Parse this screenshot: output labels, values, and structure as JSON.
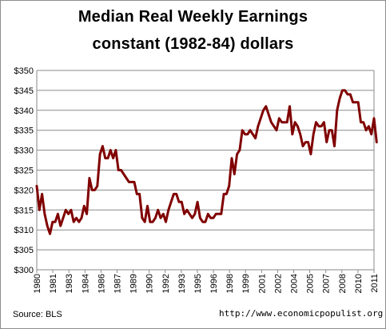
{
  "chart_data": {
    "type": "line",
    "title": "Median Real Weekly Earnings",
    "subtitle": "constant (1982-84) dollars",
    "xlabel": "",
    "ylabel": "",
    "ylim": [
      300,
      350
    ],
    "yticks": [
      300,
      305,
      310,
      315,
      320,
      325,
      330,
      335,
      340,
      345,
      350
    ],
    "ytick_labels": [
      "$300",
      "$305",
      "$310",
      "$315",
      "$320",
      "$325",
      "$330",
      "$335",
      "$340",
      "$345",
      "$350"
    ],
    "xtick_labels": [
      "1980",
      "1981",
      "1983",
      "1984",
      "1986",
      "1987",
      "1989",
      "1990",
      "1992",
      "1993",
      "1995",
      "1996",
      "1998",
      "1999",
      "2001",
      "2002",
      "2004",
      "2005",
      "2007",
      "2008",
      "2010",
      "2011"
    ],
    "xlim": [
      1980,
      2012
    ],
    "grid": true,
    "line_color": "#800000",
    "series": [
      {
        "points": [
          [
            1980.0,
            321
          ],
          [
            1980.25,
            315
          ],
          [
            1980.5,
            319
          ],
          [
            1980.75,
            314
          ],
          [
            1981.0,
            311
          ],
          [
            1981.25,
            309
          ],
          [
            1981.5,
            312
          ],
          [
            1981.75,
            312
          ],
          [
            1982.0,
            314
          ],
          [
            1982.25,
            311
          ],
          [
            1982.5,
            313
          ],
          [
            1982.75,
            315
          ],
          [
            1983.0,
            314
          ],
          [
            1983.25,
            315
          ],
          [
            1983.5,
            312
          ],
          [
            1983.75,
            313
          ],
          [
            1984.0,
            312
          ],
          [
            1984.25,
            313
          ],
          [
            1984.5,
            316
          ],
          [
            1984.75,
            314
          ],
          [
            1985.0,
            323
          ],
          [
            1985.25,
            320
          ],
          [
            1985.5,
            320
          ],
          [
            1985.75,
            321
          ],
          [
            1986.0,
            329
          ],
          [
            1986.25,
            331
          ],
          [
            1986.5,
            328
          ],
          [
            1986.75,
            328
          ],
          [
            1987.0,
            330
          ],
          [
            1987.25,
            328
          ],
          [
            1987.5,
            330
          ],
          [
            1987.75,
            325
          ],
          [
            1988.0,
            325
          ],
          [
            1988.25,
            324
          ],
          [
            1988.5,
            323
          ],
          [
            1988.75,
            322
          ],
          [
            1989.0,
            322
          ],
          [
            1989.25,
            322
          ],
          [
            1989.5,
            319
          ],
          [
            1989.75,
            319
          ],
          [
            1990.0,
            313
          ],
          [
            1990.25,
            312
          ],
          [
            1990.5,
            316
          ],
          [
            1990.75,
            312
          ],
          [
            1991.0,
            312
          ],
          [
            1991.25,
            313
          ],
          [
            1991.5,
            315
          ],
          [
            1991.75,
            313
          ],
          [
            1992.0,
            314
          ],
          [
            1992.25,
            312
          ],
          [
            1992.5,
            315
          ],
          [
            1992.75,
            317
          ],
          [
            1993.0,
            319
          ],
          [
            1993.25,
            319
          ],
          [
            1993.5,
            317
          ],
          [
            1993.75,
            317
          ],
          [
            1994.0,
            314
          ],
          [
            1994.25,
            315
          ],
          [
            1994.5,
            314
          ],
          [
            1994.75,
            313
          ],
          [
            1995.0,
            314
          ],
          [
            1995.25,
            317
          ],
          [
            1995.5,
            313
          ],
          [
            1995.75,
            312
          ],
          [
            1996.0,
            312
          ],
          [
            1996.25,
            314
          ],
          [
            1996.5,
            313
          ],
          [
            1996.75,
            313
          ],
          [
            1997.0,
            314
          ],
          [
            1997.25,
            314
          ],
          [
            1997.5,
            314
          ],
          [
            1997.75,
            319
          ],
          [
            1998.0,
            319
          ],
          [
            1998.25,
            321
          ],
          [
            1998.5,
            328
          ],
          [
            1998.75,
            324
          ],
          [
            1999.0,
            329
          ],
          [
            1999.25,
            330
          ],
          [
            1999.5,
            335
          ],
          [
            1999.75,
            334
          ],
          [
            2000.0,
            334
          ],
          [
            2000.25,
            335
          ],
          [
            2000.5,
            334
          ],
          [
            2000.75,
            333
          ],
          [
            2001.0,
            336
          ],
          [
            2001.25,
            338
          ],
          [
            2001.5,
            340
          ],
          [
            2001.75,
            341
          ],
          [
            2002.0,
            339
          ],
          [
            2002.25,
            337
          ],
          [
            2002.5,
            336
          ],
          [
            2002.75,
            335
          ],
          [
            2003.0,
            338
          ],
          [
            2003.25,
            337
          ],
          [
            2003.5,
            337
          ],
          [
            2003.75,
            337
          ],
          [
            2004.0,
            341
          ],
          [
            2004.25,
            334
          ],
          [
            2004.5,
            337
          ],
          [
            2004.75,
            336
          ],
          [
            2005.0,
            334
          ],
          [
            2005.25,
            331
          ],
          [
            2005.5,
            332
          ],
          [
            2005.75,
            332
          ],
          [
            2006.0,
            329
          ],
          [
            2006.25,
            334
          ],
          [
            2006.5,
            337
          ],
          [
            2006.75,
            336
          ],
          [
            2007.0,
            336
          ],
          [
            2007.25,
            337
          ],
          [
            2007.5,
            332
          ],
          [
            2007.75,
            335
          ],
          [
            2008.0,
            335
          ],
          [
            2008.25,
            331
          ],
          [
            2008.5,
            340
          ],
          [
            2008.75,
            343
          ],
          [
            2009.0,
            345
          ],
          [
            2009.25,
            345
          ],
          [
            2009.5,
            344
          ],
          [
            2009.75,
            344
          ],
          [
            2010.0,
            342
          ],
          [
            2010.25,
            342
          ],
          [
            2010.5,
            342
          ],
          [
            2010.75,
            337
          ],
          [
            2011.0,
            337
          ],
          [
            2011.25,
            335
          ],
          [
            2011.5,
            336
          ],
          [
            2011.75,
            334
          ],
          [
            2012.0,
            338
          ],
          [
            2012.25,
            332
          ]
        ]
      }
    ]
  },
  "footer": {
    "source": "Source:  BLS",
    "url": "http://www.economicpopulist.org"
  }
}
